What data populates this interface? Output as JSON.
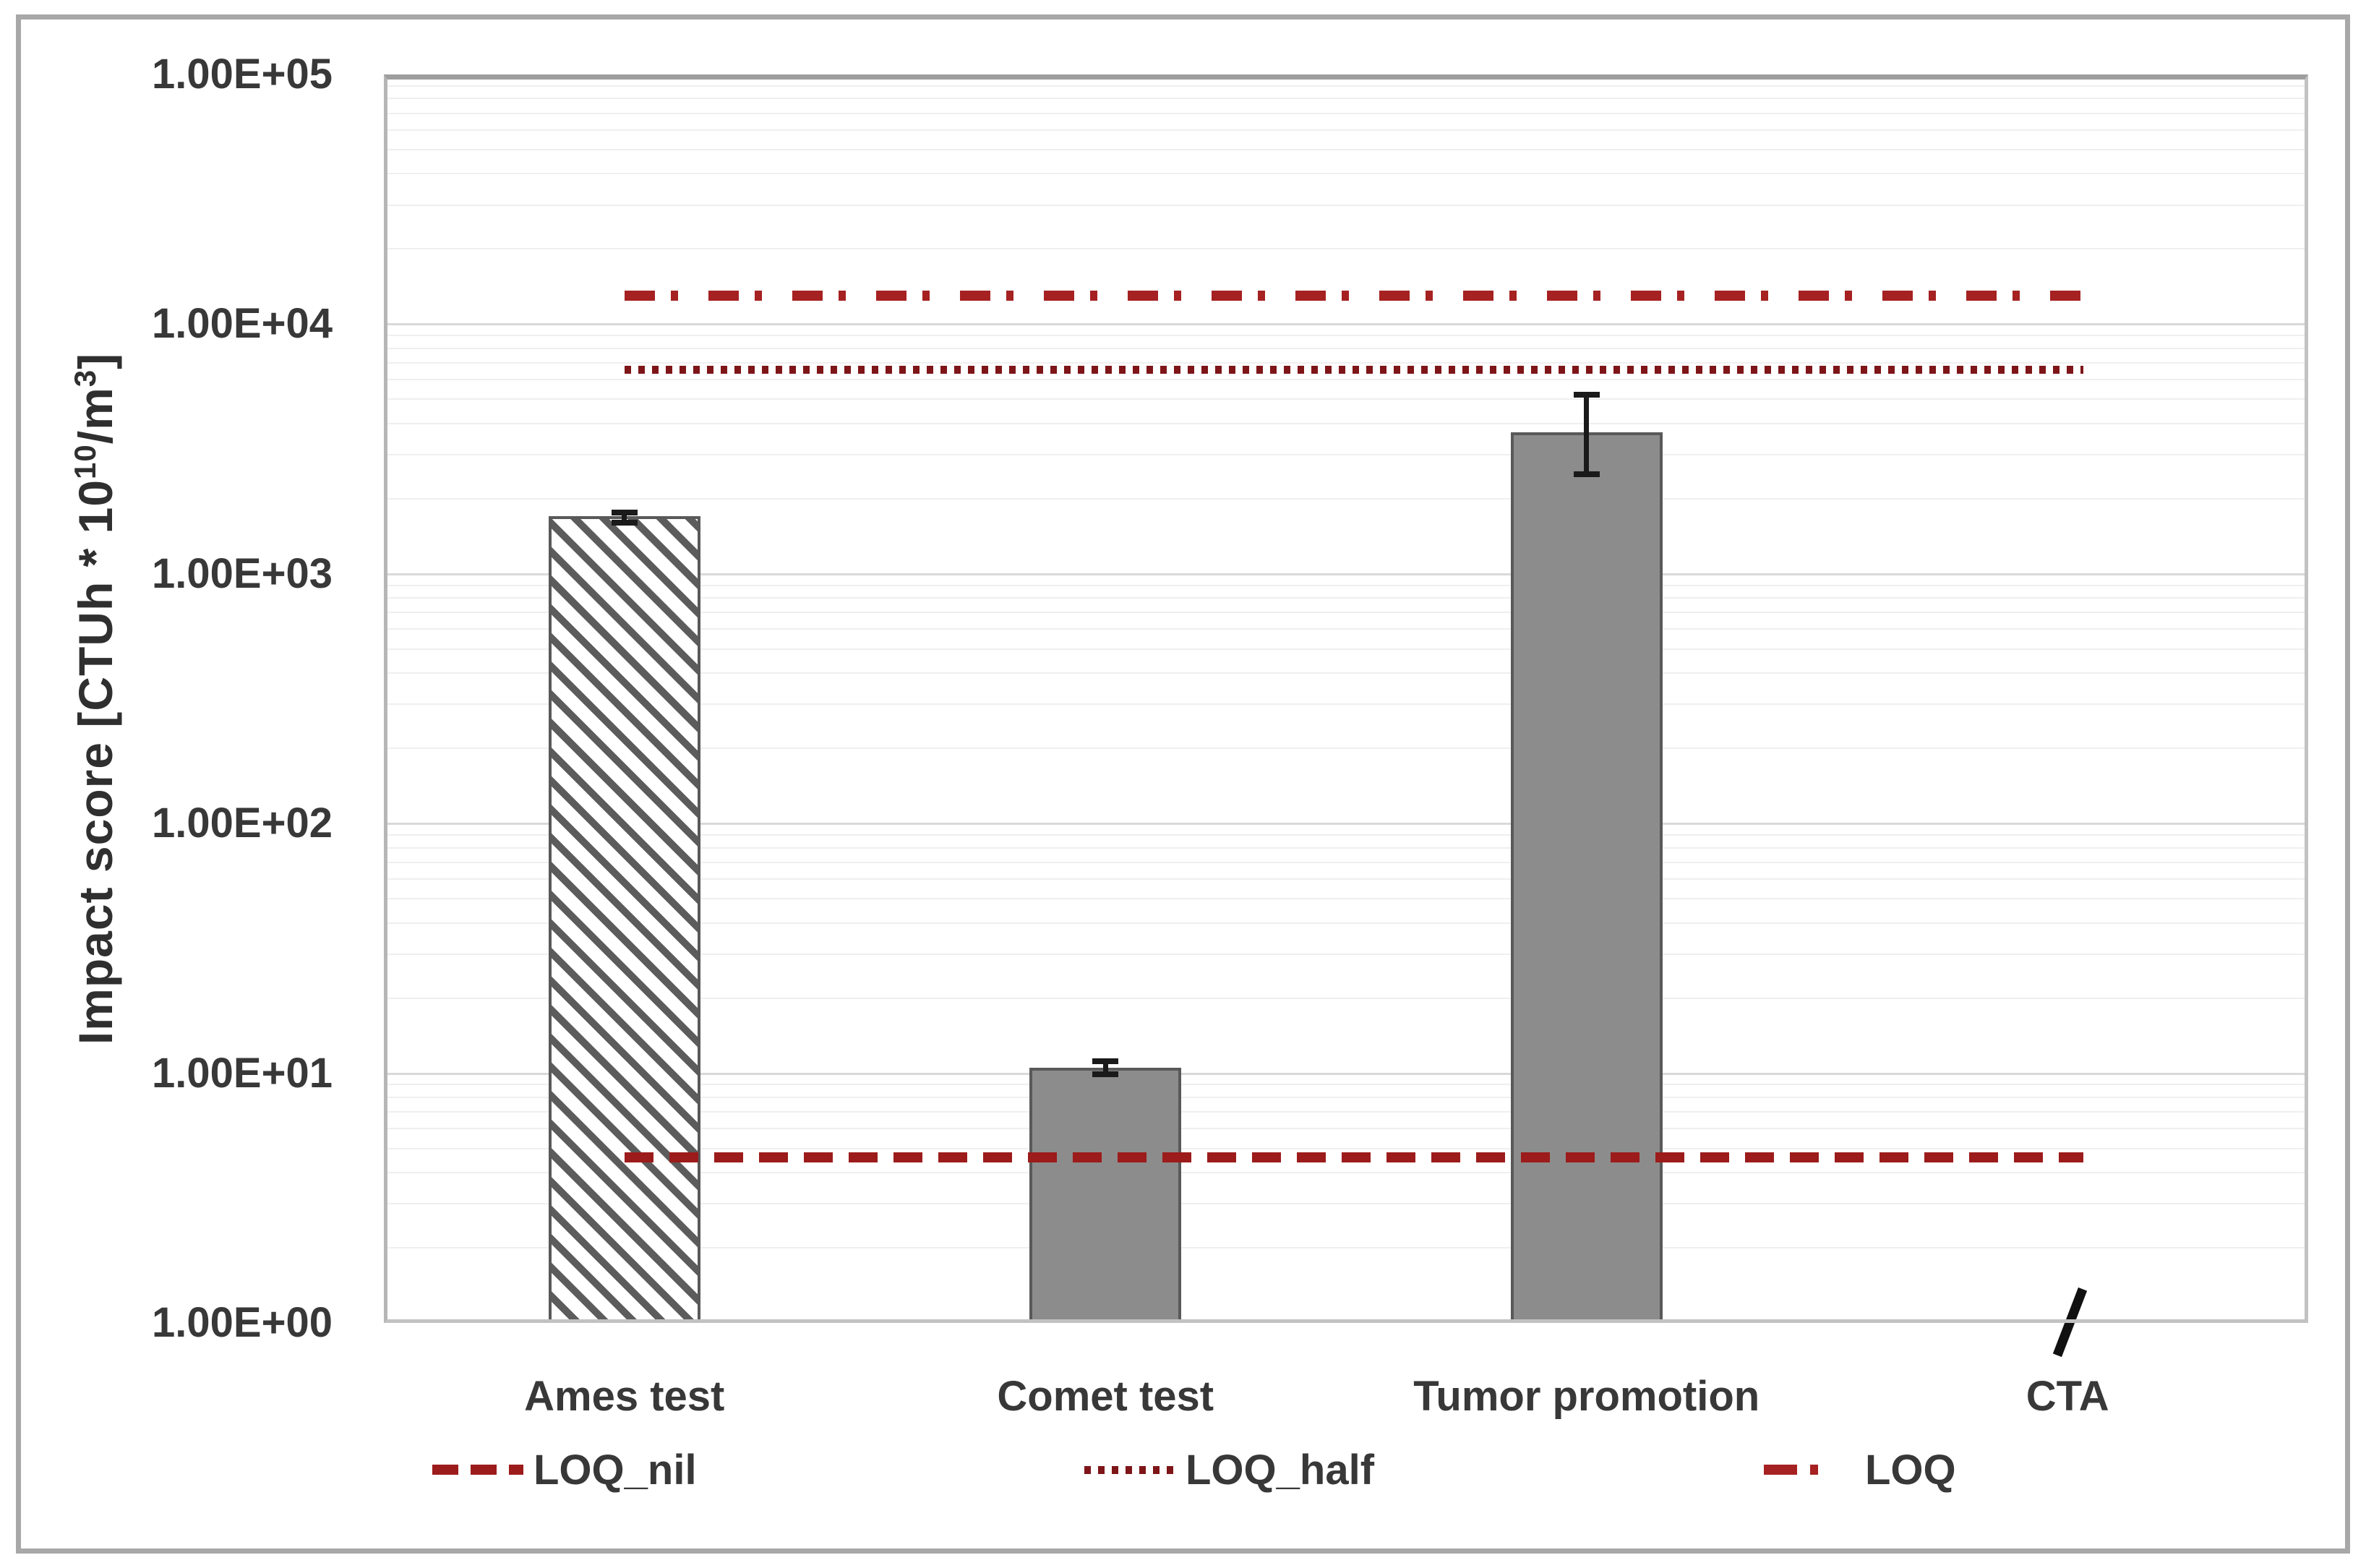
{
  "chart_data": {
    "type": "bar",
    "y_axis": {
      "label_plain": "Impact score [CTUh * 10^10/m^3]",
      "label_segments": {
        "prefix": "Impact score [CTUh * 10",
        "sup1": "10",
        "mid": "/m",
        "sup2": "3",
        "suffix": "]"
      },
      "scale": "log",
      "min": 1,
      "max": 100000,
      "tick_labels": [
        "1.00E+00",
        "1.00E+01",
        "1.00E+02",
        "1.00E+03",
        "1.00E+04",
        "1.00E+05"
      ]
    },
    "categories": [
      "Ames test",
      "Comet test",
      "Tumor promotion",
      "CTA"
    ],
    "bars": [
      {
        "category": "Ames test",
        "value": 1700,
        "fill": "hatched",
        "error_low": 1600,
        "error_high": 1760
      },
      {
        "category": "Comet test",
        "value": 10.5,
        "fill": "solid",
        "error_low": 9.9,
        "error_high": 11.2
      },
      {
        "category": "Tumor promotion",
        "value": 3700,
        "fill": "solid",
        "error_low": 2500,
        "error_high": 5200
      },
      {
        "category": "CTA",
        "value": null,
        "fill": null,
        "error_low": null,
        "error_high": null
      }
    ],
    "no_data_marker": {
      "category": "CTA",
      "glyph": "/"
    },
    "reference_lines": [
      {
        "label": "LOQ_nil",
        "value": 4.6,
        "style": "dashed",
        "color": "#9c1b1b"
      },
      {
        "label": "LOQ_half",
        "value": 6500,
        "style": "dotted",
        "color": "#7e1518"
      },
      {
        "label": "LOQ",
        "value": 13000,
        "style": "dash-dot",
        "color": "#a62121"
      }
    ],
    "legend": {
      "position": "bottom",
      "entries": [
        {
          "label": "LOQ_nil",
          "style": "dashed"
        },
        {
          "label": "LOQ_half",
          "style": "dotted"
        },
        {
          "label": "LOQ",
          "style": "dash-dot"
        }
      ]
    },
    "grid": {
      "major": true,
      "minor": true
    },
    "colors": {
      "bar_fill": "#8c8c8c",
      "bar_border": "#595959",
      "hatch_stripe": "#5c5c5c",
      "error_bar": "#1a1a1a",
      "major_grid": "#d9d9d9",
      "minor_grid": "#efefef",
      "plot_border": "#b6b6b6",
      "figure_border": "#a8a8a8",
      "text": "#383838",
      "background": "#ffffff"
    }
  }
}
